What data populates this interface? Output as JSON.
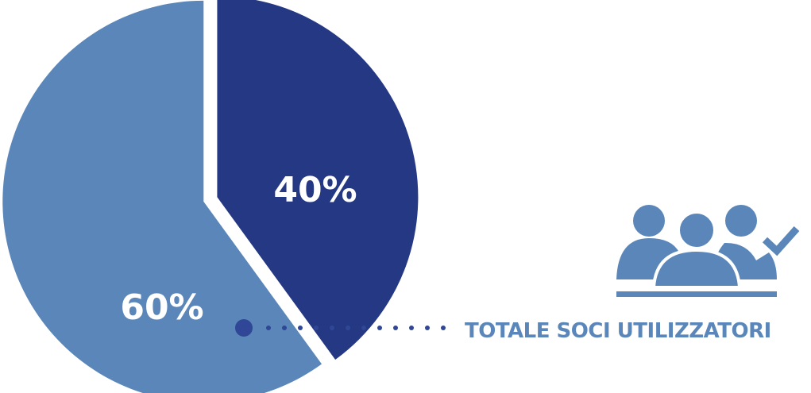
{
  "colors": {
    "light_blue": "#5a86b9",
    "dark_blue": "#253883",
    "dot_blue": "#2f4796",
    "text_blue": "#5a86b9"
  },
  "legend": {
    "label": "TOTALE SOCI UTILIZZATORI",
    "icon": "users-check-icon"
  },
  "chart_data": {
    "type": "pie",
    "categories": [
      "TOTALE SOCI UTILIZZATORI",
      ""
    ],
    "values": [
      40,
      60
    ],
    "data_labels": [
      "40%",
      "60%"
    ],
    "exploded": true,
    "start_angle_deg": 0,
    "direction": "clockwise"
  }
}
